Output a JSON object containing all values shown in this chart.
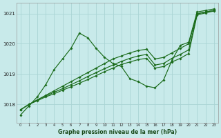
{
  "title": "Graphe pression niveau de la mer (hPa)",
  "background_color": "#c8eaea",
  "grid_color": "#aad4d4",
  "line_color": "#1a6b1a",
  "xlim": [
    -0.5,
    23.5
  ],
  "ylim": [
    1017.4,
    1021.35
  ],
  "yticks": [
    1018,
    1019,
    1020,
    1021
  ],
  "xticks": [
    0,
    1,
    2,
    3,
    4,
    5,
    6,
    7,
    8,
    9,
    10,
    11,
    12,
    13,
    14,
    15,
    16,
    17,
    18,
    19,
    20,
    21,
    22,
    23
  ],
  "series": [
    {
      "hours": [
        0,
        1,
        2,
        3,
        4,
        5,
        6,
        7,
        8,
        9,
        10,
        11,
        12,
        13,
        14,
        15,
        16,
        17,
        18,
        19,
        20,
        21,
        22,
        23
      ],
      "values": [
        1017.65,
        1017.95,
        1018.25,
        1018.65,
        1019.15,
        1019.5,
        1019.85,
        1020.35,
        1020.2,
        1019.85,
        1019.55,
        1019.35,
        1019.25,
        1018.85,
        1018.75,
        1018.6,
        1018.55,
        1018.8,
        1019.45,
        1019.95,
        1020.05,
        1021.05,
        1021.1,
        1021.15
      ]
    },
    {
      "hours": [
        0,
        1,
        2,
        3,
        4,
        5,
        6,
        7,
        8,
        9,
        10,
        11,
        12,
        13,
        14,
        15,
        16,
        17,
        18,
        19,
        20,
        21,
        22,
        23
      ],
      "values": [
        1017.82,
        1018.0,
        1018.15,
        1018.3,
        1018.45,
        1018.6,
        1018.75,
        1018.9,
        1019.05,
        1019.2,
        1019.35,
        1019.5,
        1019.6,
        1019.7,
        1019.78,
        1019.82,
        1019.5,
        1019.55,
        1019.7,
        1019.85,
        1020.0,
        1021.0,
        1021.05,
        1021.1
      ]
    },
    {
      "hours": [
        0,
        1,
        2,
        3,
        4,
        5,
        6,
        7,
        8,
        9,
        10,
        11,
        12,
        13,
        14,
        15,
        16,
        17,
        18,
        19,
        20,
        21,
        22,
        23
      ],
      "values": [
        1017.82,
        1018.0,
        1018.15,
        1018.28,
        1018.4,
        1018.52,
        1018.65,
        1018.78,
        1018.92,
        1019.05,
        1019.18,
        1019.3,
        1019.42,
        1019.52,
        1019.6,
        1019.65,
        1019.3,
        1019.35,
        1019.52,
        1019.65,
        1019.8,
        1020.98,
        1021.05,
        1021.1
      ]
    },
    {
      "hours": [
        0,
        1,
        2,
        3,
        4,
        5,
        6,
        7,
        8,
        9,
        10,
        11,
        12,
        13,
        14,
        15,
        16,
        17,
        18,
        19,
        20,
        21,
        22,
        23
      ],
      "values": [
        1017.82,
        1018.0,
        1018.12,
        1018.25,
        1018.35,
        1018.47,
        1018.58,
        1018.7,
        1018.82,
        1018.95,
        1019.08,
        1019.2,
        1019.32,
        1019.4,
        1019.48,
        1019.52,
        1019.2,
        1019.25,
        1019.4,
        1019.52,
        1019.68,
        1020.95,
        1021.02,
        1021.08
      ]
    }
  ]
}
